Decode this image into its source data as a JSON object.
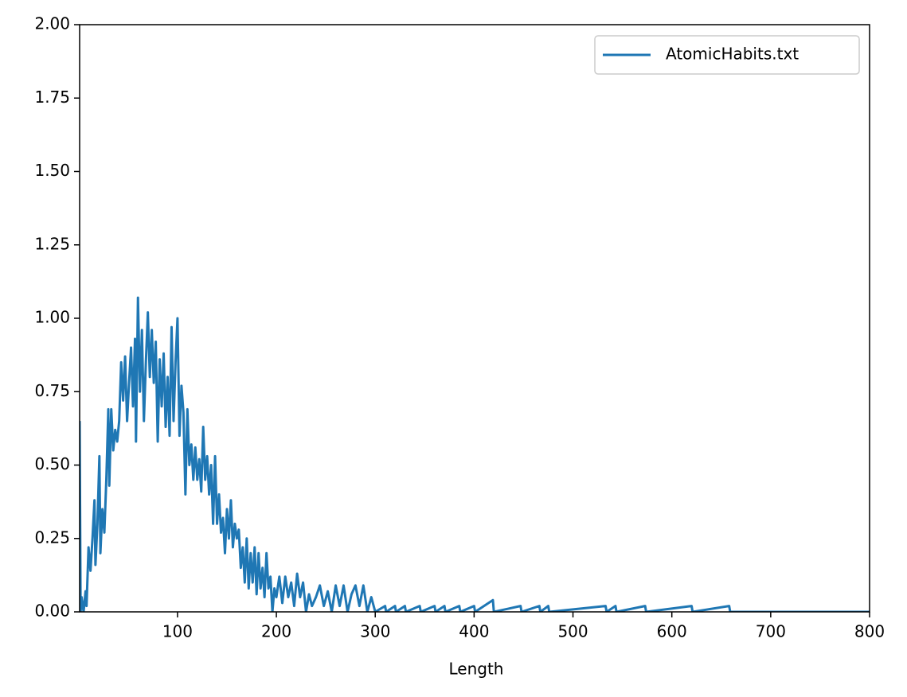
{
  "chart_data": {
    "type": "line",
    "x_label": "Length",
    "x": [
      1,
      2,
      3,
      5,
      7,
      8,
      10,
      12,
      14,
      16,
      17,
      19,
      21,
      22,
      24,
      26,
      28,
      30,
      31,
      33,
      35,
      37,
      39,
      41,
      43,
      45,
      47,
      49,
      51,
      53,
      55,
      57,
      58,
      60,
      62,
      64,
      66,
      68,
      70,
      72,
      74,
      76,
      78,
      80,
      82,
      84,
      86,
      88,
      90,
      92,
      94,
      96,
      98,
      100,
      102,
      104,
      106,
      108,
      110,
      112,
      114,
      116,
      118,
      120,
      122,
      124,
      126,
      128,
      130,
      132,
      134,
      136,
      138,
      140,
      142,
      144,
      146,
      148,
      150,
      152,
      154,
      156,
      158,
      160,
      162,
      164,
      166,
      168,
      170,
      172,
      174,
      176,
      178,
      180,
      182,
      184,
      186,
      188,
      190,
      192,
      194,
      196,
      198,
      200,
      203,
      206,
      209,
      212,
      215,
      218,
      221,
      224,
      227,
      230,
      233,
      236,
      240,
      244,
      248,
      252,
      256,
      260,
      264,
      268,
      272,
      276,
      280,
      284,
      288,
      292,
      296,
      300,
      310,
      311,
      320,
      321,
      330,
      331,
      345,
      346,
      360,
      361,
      370,
      371,
      385,
      386,
      400,
      401,
      419,
      420,
      447,
      448,
      466,
      467,
      475,
      476,
      533,
      534,
      543,
      544,
      573,
      574,
      620,
      621,
      658,
      659,
      800
    ],
    "series": [
      {
        "name": "AtomicHabits.txt",
        "color": "#1f77b4",
        "values": [
          0.65,
          0,
          0.05,
          0,
          0.07,
          0.02,
          0.22,
          0.14,
          0.25,
          0.38,
          0.16,
          0.3,
          0.53,
          0.2,
          0.35,
          0.27,
          0.45,
          0.69,
          0.43,
          0.69,
          0.55,
          0.62,
          0.58,
          0.65,
          0.85,
          0.72,
          0.87,
          0.65,
          0.78,
          0.9,
          0.7,
          0.93,
          0.58,
          1.07,
          0.75,
          0.96,
          0.65,
          0.85,
          1.02,
          0.8,
          0.96,
          0.78,
          0.92,
          0.58,
          0.86,
          0.7,
          0.88,
          0.63,
          0.8,
          0.6,
          0.97,
          0.65,
          0.85,
          1.0,
          0.6,
          0.77,
          0.68,
          0.4,
          0.69,
          0.5,
          0.57,
          0.45,
          0.56,
          0.45,
          0.52,
          0.41,
          0.63,
          0.45,
          0.53,
          0.4,
          0.5,
          0.3,
          0.53,
          0.3,
          0.4,
          0.27,
          0.32,
          0.2,
          0.35,
          0.25,
          0.38,
          0.22,
          0.3,
          0.25,
          0.28,
          0.15,
          0.22,
          0.1,
          0.25,
          0.08,
          0.2,
          0.1,
          0.22,
          0.06,
          0.2,
          0.08,
          0.15,
          0.05,
          0.2,
          0.08,
          0.12,
          0,
          0.08,
          0.05,
          0.12,
          0.03,
          0.12,
          0.05,
          0.1,
          0.02,
          0.13,
          0.05,
          0.1,
          0,
          0.06,
          0.02,
          0.05,
          0.09,
          0.02,
          0.07,
          0,
          0.09,
          0.02,
          0.09,
          0,
          0.06,
          0.09,
          0.02,
          0.09,
          0,
          0.05,
          0,
          0.02,
          0,
          0.02,
          0,
          0.02,
          0,
          0.02,
          0,
          0.02,
          0,
          0.02,
          0,
          0.02,
          0,
          0.02,
          0,
          0.04,
          0,
          0.02,
          0,
          0.02,
          0,
          0.02,
          0,
          0.02,
          0,
          0.02,
          0,
          0.02,
          0,
          0.02,
          0,
          0.02,
          0,
          0
        ]
      }
    ],
    "xlim": [
      1,
      800
    ],
    "xticks": [
      100,
      200,
      300,
      400,
      500,
      600,
      700,
      800
    ],
    "ylim": [
      0,
      2
    ],
    "yticks": [
      {
        "value": 0,
        "label": "0.00"
      },
      {
        "value": 0.25,
        "label": "0.25"
      },
      {
        "value": 0.5,
        "label": "0.50"
      },
      {
        "value": 0.75,
        "label": "0.75"
      },
      {
        "value": 1,
        "label": "1.00"
      },
      {
        "value": 1.25,
        "label": "1.25"
      },
      {
        "value": 1.5,
        "label": "1.50"
      },
      {
        "value": 1.75,
        "label": "1.75"
      },
      {
        "value": 2,
        "label": "2.00"
      }
    ],
    "grid": false,
    "legend": "upper right"
  }
}
